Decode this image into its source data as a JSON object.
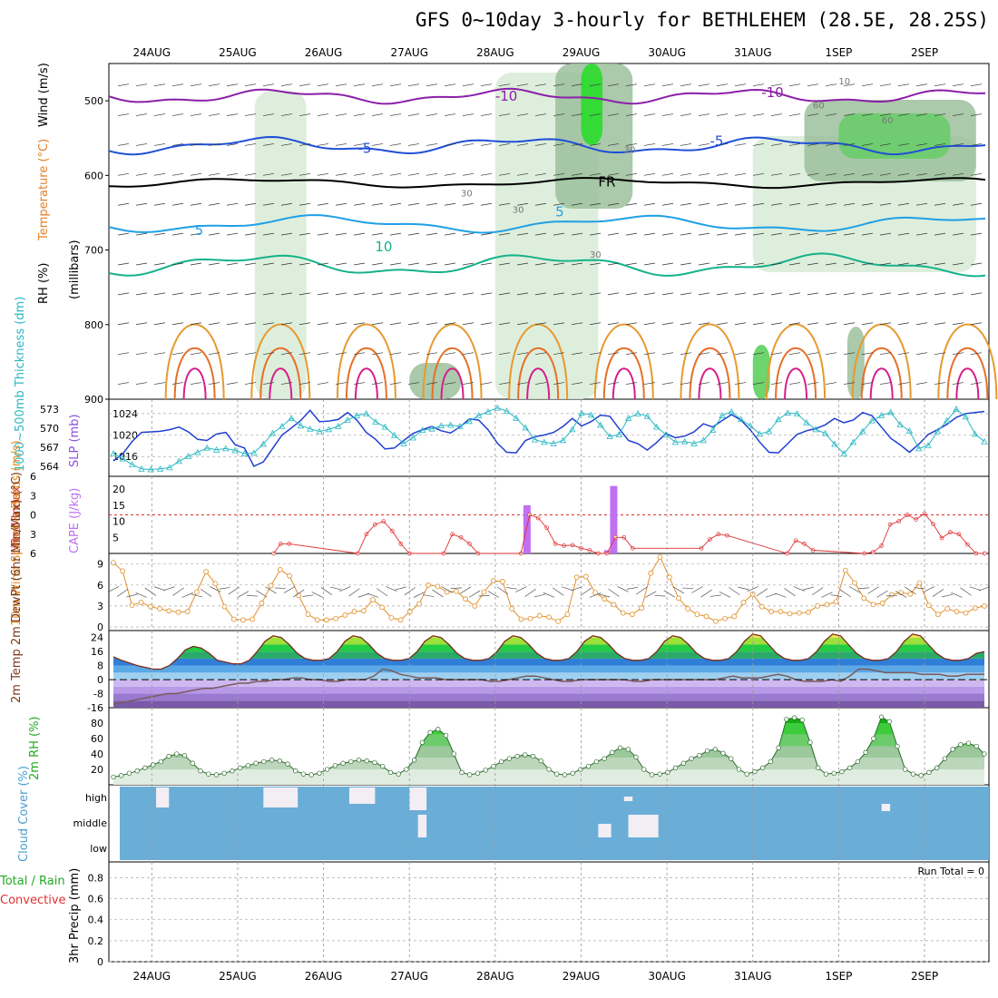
{
  "title": "GFS 0~10day 3-hourly for BETHLEHEM (28.5E, 28.25S)",
  "days": [
    "24AUG",
    "25AUG",
    "26AUG",
    "27AUG",
    "28AUG",
    "29AUG",
    "30AUG",
    "31AUG",
    "1SEP",
    "2SEP"
  ],
  "run_total": "Run Total = 0",
  "colors": {
    "rh_light": "#d8ebd6",
    "rh_mid": "#9cbf9c",
    "rh_dark": "#6d8c6d",
    "rh_green": "#22dd22",
    "temp_purple": "#8b1fa8",
    "temp_blue": "#1f4fd6",
    "temp_freezing": "#000000",
    "temp_lightblue": "#1fa0e6",
    "temp_teal": "#16b28a",
    "temp_orange": "#e69a2e",
    "temp_darkorange": "#e6702a",
    "temp_magenta": "#d61e8a",
    "slp": "#1f3fd0",
    "thickness": "#2ab8c4",
    "lifted": "#e03030",
    "cape": "#c070f0",
    "wind": "#e0902a",
    "cloud": "#6aaed8"
  },
  "chart_data": [
    {
      "type": "contour",
      "panel": "upper-air",
      "ylabel_parts": [
        "RH (%)",
        "Temperature (°C)",
        "Wind (m/s)"
      ],
      "ylabel2": "(millibars)",
      "yticks": [
        500,
        600,
        700,
        800,
        900
      ],
      "ylim": [
        450,
        900
      ],
      "temperature_labels": [
        "-10",
        "-10",
        "-5",
        "-5",
        "FR",
        "5",
        "5",
        "10"
      ],
      "rh_labels": [
        "10",
        "30",
        "30",
        "30",
        "30",
        "60",
        "60"
      ]
    },
    {
      "type": "line",
      "panel": "thickness-slp",
      "ylabel_left": "1000~500mb Thickness (dm)",
      "ylabel_right": "SLP (mb)",
      "thickness_ticks": [
        564,
        567,
        570,
        573
      ],
      "slp_ticks": [
        1016,
        1020,
        1024
      ],
      "series": [
        {
          "name": "SLP (mb)",
          "values": [
            1015.2,
            1016.5,
            1018.8,
            1020.5,
            1020.6,
            1020.7,
            1021.0,
            1021.5,
            1020.6,
            1019.2,
            1019.0,
            1020.2,
            1020.5,
            1018.2,
            1017.6,
            1014.2,
            1015.0,
            1017.5,
            1020.0,
            1021.3,
            1022.7,
            1024.6,
            1022.5,
            1022.6,
            1022.9,
            1024.2,
            1022.8,
            1020.5,
            1019.2,
            1017.4,
            1017.6,
            1019.0,
            1020.3,
            1021.0,
            1021.6,
            1020.8,
            1020.4,
            1021.5,
            1023.0,
            1022.8,
            1021.0,
            1018.5,
            1016.8,
            1016.7,
            1019.0,
            1019.7,
            1020.0,
            1020.5,
            1021.6,
            1023.1,
            1021.7,
            1022.5,
            1023.7,
            1023.5,
            1021.2,
            1019.0,
            1018.4,
            1017.2,
            1018.6,
            1020.3,
            1019.5,
            1019.8,
            1020.6,
            1022.1,
            1021.5,
            1022.7,
            1023.8,
            1022.8,
            1021.0,
            1018.7,
            1016.8,
            1016.7,
            1018.4,
            1020.1,
            1020.8,
            1021.2,
            1021.9,
            1023.1,
            1022.3,
            1022.8,
            1024.2,
            1023.6,
            1021.5,
            1019.4,
            1018.2,
            1016.8,
            1018.3,
            1020.1,
            1021.0,
            1022.0,
            1023.3,
            1024.0,
            1024.2,
            1024.4
          ]
        },
        {
          "name": "1000~500mb Thickness (dm)",
          "values": [
            566.0,
            565.2,
            564.3,
            563.6,
            563.5,
            563.6,
            563.8,
            564.8,
            565.6,
            566.2,
            566.9,
            566.6,
            566.8,
            566.5,
            566.0,
            566.1,
            567.5,
            569.2,
            570.3,
            571.6,
            570.4,
            569.9,
            569.5,
            569.8,
            570.3,
            571.3,
            572.0,
            572.3,
            571.0,
            570.2,
            568.9,
            567.6,
            568.5,
            569.7,
            569.9,
            570.4,
            570.5,
            570.3,
            571.1,
            572.0,
            572.6,
            573.2,
            572.7,
            571.6,
            570.1,
            568.2,
            567.8,
            567.6,
            568.1,
            569.8,
            572.4,
            572.1,
            570.5,
            568.7,
            569.0,
            571.6,
            572.3,
            571.9,
            570.2,
            569.0,
            567.8,
            567.9,
            567.6,
            568.1,
            569.7,
            572.0,
            572.6,
            571.4,
            570.4,
            569.1,
            569.5,
            571.4,
            572.4,
            572.3,
            570.9,
            569.8,
            569.2,
            567.5,
            566.0,
            567.8,
            569.5,
            571.2,
            572.0,
            572.5,
            570.6,
            569.6,
            566.8,
            567.3,
            569.5,
            571.2,
            573.0,
            571.8,
            569.1,
            567.9
          ]
        }
      ]
    },
    {
      "type": "bar",
      "panel": "lifted-cape",
      "ylabel_left": "Lifted Index",
      "ylabel_right": "CAPE (J/kg)",
      "li_ticks": [
        -6,
        -3,
        0,
        3,
        6
      ],
      "cape_ticks": [
        5,
        10,
        15,
        20
      ],
      "series": [
        {
          "name": "CAPE (J/kg)",
          "bars": [
            [
              28.37,
              15
            ],
            [
              29.31,
              1
            ],
            [
              29.38,
              21
            ]
          ]
        },
        {
          "name": "Lifted Index",
          "x": [
            25.42,
            25.5,
            25.6,
            26.4,
            26.5,
            26.6,
            26.7,
            26.8,
            26.9,
            27.0,
            27.4,
            27.5,
            27.6,
            27.7,
            27.8,
            28.3,
            28.4,
            28.5,
            28.6,
            28.7,
            28.8,
            28.9,
            29.0,
            29.1,
            29.2,
            29.3,
            29.4,
            29.5,
            29.6,
            30.4,
            30.5,
            30.6,
            30.7,
            31.4,
            31.5,
            31.6,
            31.7,
            32.3,
            32.4,
            32.5,
            32.6,
            32.7,
            32.8,
            32.9,
            33.0,
            33.1,
            33.2,
            33.3,
            33.4,
            33.5,
            33.6,
            33.7
          ],
          "values": [
            6,
            4.5,
            4.5,
            6,
            3,
            1.5,
            1,
            2.5,
            4.5,
            6,
            6,
            3,
            3.5,
            4.5,
            6,
            6,
            0,
            0.5,
            2,
            4.5,
            4.8,
            4.7,
            5.2,
            5.5,
            6,
            6,
            3.5,
            3.5,
            5.2,
            5.2,
            3.8,
            3,
            3.2,
            6,
            4,
            4.5,
            5.5,
            6,
            5.8,
            4.8,
            1.5,
            1,
            0,
            0.7,
            -0.2,
            1.4,
            3.6,
            2.7,
            3,
            4.6,
            6,
            6
          ]
        }
      ]
    },
    {
      "type": "line",
      "panel": "10m-wind",
      "ylabel": "10m Wind Speed & Barbs (m/s)",
      "yticks": [
        0,
        3,
        6,
        9
      ],
      "ylim": [
        0,
        10
      ],
      "series": [
        {
          "name": "Speed",
          "values": [
            9.2,
            8.0,
            3.1,
            3.5,
            2.9,
            2.6,
            2.3,
            2.1,
            2.2,
            5.0,
            7.9,
            6.2,
            2.9,
            1.1,
            1.0,
            1.1,
            3.4,
            5.9,
            8.2,
            7.3,
            4.5,
            1.8,
            1.0,
            1.0,
            1.2,
            1.7,
            2.2,
            2.3,
            3.9,
            2.8,
            1.3,
            1.0,
            2.2,
            3.3,
            6.0,
            5.8,
            5.0,
            5.1,
            4.0,
            3.0,
            5.0,
            6.6,
            6.5,
            2.6,
            1.1,
            1.2,
            1.6,
            1.4,
            0.8,
            1.8,
            7.1,
            7.2,
            4.9,
            4.0,
            3.2,
            2.0,
            1.8,
            2.7,
            7.7,
            10.0,
            7.1,
            4.1,
            2.6,
            1.8,
            1.5,
            0.8,
            1.2,
            1.5,
            3.5,
            4.7,
            2.9,
            2.2,
            2.2,
            1.9,
            2.0,
            2.1,
            3.0,
            3.2,
            3.6,
            8.1,
            6.3,
            4.1,
            3.2,
            3.4,
            4.6,
            4.9,
            4.7,
            6.3,
            3.1,
            1.8,
            2.6,
            2.2,
            2.0,
            2.7,
            3.0
          ]
        }
      ]
    },
    {
      "type": "area",
      "panel": "2m-temp",
      "ylabel": "2m Temp 2m DewPt (6hr Min/Max) (°C)",
      "yticks": [
        -16,
        -8,
        0,
        8,
        16,
        24
      ],
      "ylim": [
        -16,
        28
      ],
      "series": [
        {
          "name": "2m Temp",
          "values": [
            13,
            11,
            9.5,
            8,
            7,
            6,
            6,
            8,
            12,
            17,
            19,
            18,
            15,
            11,
            10,
            9,
            9,
            11,
            16,
            22,
            25,
            24,
            20,
            15,
            12,
            11,
            11,
            12,
            16,
            22,
            25,
            24,
            20,
            15,
            12,
            11,
            11,
            12,
            16,
            22,
            25,
            24,
            20,
            15,
            12,
            11,
            11,
            12,
            16,
            22,
            25,
            24,
            20,
            15,
            12,
            11,
            11,
            12,
            16,
            22,
            25,
            24,
            20,
            15,
            12,
            11,
            11,
            12,
            16,
            22,
            25,
            24,
            20,
            15,
            12,
            11,
            11,
            12,
            16,
            22,
            26,
            25,
            20,
            15,
            12,
            11,
            11,
            12,
            16,
            22,
            26,
            25,
            20,
            15,
            12,
            11,
            11,
            12,
            16,
            22,
            26,
            25,
            20,
            15,
            12,
            11,
            11,
            12,
            15,
            16
          ]
        },
        {
          "name": "2m DewPt",
          "values": [
            -14,
            -13,
            -12,
            -11,
            -10,
            -9,
            -8,
            -8,
            -7,
            -6,
            -5,
            -5,
            -4,
            -3,
            -2,
            -2,
            -1,
            -1,
            0,
            0,
            1,
            1,
            0,
            0,
            -1,
            -1,
            0,
            0,
            0,
            2,
            6,
            5,
            3,
            2,
            1,
            1,
            1,
            0,
            0,
            0,
            0,
            0,
            -1,
            -1,
            0,
            1,
            2,
            2,
            1,
            0,
            -1,
            -1,
            0,
            0,
            0,
            0,
            0,
            0,
            -1,
            -1,
            0,
            0,
            0,
            0,
            0,
            0,
            0,
            0,
            1,
            2,
            1,
            1,
            1,
            2,
            3,
            2,
            0,
            -1,
            -1,
            -1,
            0,
            -1,
            2,
            6,
            6,
            5,
            4,
            4,
            4,
            4,
            3,
            3,
            3,
            2,
            2,
            3,
            3,
            3
          ]
        }
      ]
    },
    {
      "type": "area",
      "panel": "2m-rh",
      "ylabel": "2m RH (%)",
      "yticks": [
        20,
        40,
        60,
        80
      ],
      "ylim": [
        0,
        100
      ],
      "series": [
        {
          "name": "2m RH",
          "values": [
            10,
            12,
            15,
            18,
            22,
            26,
            30,
            37,
            40,
            38,
            28,
            18,
            14,
            13,
            15,
            18,
            22,
            25,
            28,
            30,
            32,
            31,
            27,
            18,
            14,
            13,
            15,
            20,
            25,
            28,
            30,
            32,
            31,
            29,
            24,
            16,
            14,
            20,
            32,
            55,
            68,
            72,
            64,
            40,
            16,
            13,
            15,
            19,
            24,
            30,
            34,
            37,
            39,
            37,
            31,
            20,
            14,
            13,
            15,
            20,
            24,
            30,
            34,
            42,
            48,
            46,
            36,
            20,
            13,
            14,
            16,
            22,
            28,
            34,
            38,
            44,
            46,
            41,
            34,
            20,
            14,
            17,
            22,
            30,
            48,
            85,
            87,
            84,
            55,
            22,
            14,
            15,
            17,
            22,
            30,
            42,
            60,
            88,
            82,
            50,
            20,
            14,
            12,
            16,
            22,
            34,
            46,
            52,
            54,
            50,
            40
          ]
        }
      ]
    },
    {
      "type": "heatmap",
      "panel": "cloud-cover",
      "ylabel": "Cloud Cover (%)",
      "levels": [
        "high",
        "middle",
        "low"
      ]
    },
    {
      "type": "bar",
      "panel": "precip",
      "ylabel": "3hr Precip (mm)",
      "ylabel_series": [
        "Total / Rain",
        "Convective"
      ],
      "yticks": [
        0,
        0.2,
        0.4,
        0.6,
        0.8
      ],
      "ylim": [
        0,
        0.95
      ],
      "values": []
    }
  ]
}
